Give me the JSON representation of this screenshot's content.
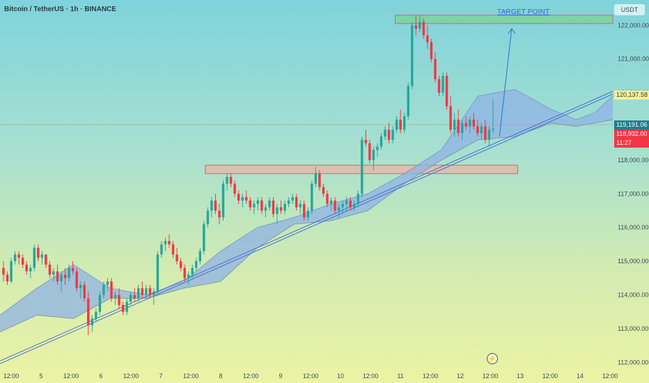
{
  "header": {
    "title": "Bitcoin / TetherUS · 1h · BINANCE",
    "currency": "USDT"
  },
  "annotations": {
    "target_label": "TARGET POINT",
    "price_tags": {
      "upper_cloud": "120,137.58",
      "last_price": "119,191.06",
      "close_price": "118,932.00",
      "countdown": "11:27"
    }
  },
  "colors": {
    "bull": "#26a69a",
    "bear": "#f23645",
    "cloud_bull": "#8fb3e6",
    "cloud_bear": "#f4f0a0",
    "trendline": "#4a6fd0",
    "target_zone": "#7ed39a",
    "support_zone": "#e8b6a6"
  },
  "chart_data": {
    "type": "candlestick",
    "y_axis": {
      "range": [
        111800,
        122750
      ],
      "ticks": [
        "112,000.00",
        "113,000.00",
        "114,000.00",
        "115,000.00",
        "116,000.00",
        "117,000.00",
        "118,000.00",
        "119,000.00",
        "120,000.00",
        "121,000.00",
        "122,000.00"
      ]
    },
    "x_axis": {
      "ticks": [
        "12:00",
        "5",
        "12:00",
        "6",
        "12:00",
        "7",
        "12:00",
        "8",
        "12:00",
        "9",
        "12:00",
        "10",
        "12:00",
        "11",
        "12:00",
        "12",
        "12:00",
        "13",
        "12:00",
        "14",
        "12:00"
      ]
    },
    "candles": [
      [
        114800,
        115000,
        114400,
        114600
      ],
      [
        114600,
        114700,
        114300,
        114400
      ],
      [
        114400,
        115100,
        114350,
        115000
      ],
      [
        115000,
        115300,
        114900,
        115200
      ],
      [
        115200,
        115300,
        114900,
        115100
      ],
      [
        115100,
        115200,
        114800,
        114900
      ],
      [
        114900,
        115000,
        114600,
        114700
      ],
      [
        114700,
        114900,
        114500,
        114800
      ],
      [
        114800,
        115500,
        114700,
        115400
      ],
      [
        115400,
        115500,
        115000,
        115100
      ],
      [
        115100,
        115300,
        114900,
        115200
      ],
      [
        115200,
        115200,
        114800,
        114900
      ],
      [
        114900,
        115000,
        114500,
        114600
      ],
      [
        114600,
        114800,
        114400,
        114700
      ],
      [
        114700,
        114900,
        114300,
        114400
      ],
      [
        114400,
        114700,
        114100,
        114600
      ],
      [
        114600,
        114800,
        114300,
        114500
      ],
      [
        114500,
        114900,
        114400,
        114800
      ],
      [
        114800,
        115000,
        114600,
        114700
      ],
      [
        114700,
        114800,
        114100,
        114200
      ],
      [
        114200,
        114400,
        113900,
        114300
      ],
      [
        114300,
        114400,
        113800,
        113900
      ],
      [
        113900,
        114100,
        112800,
        113100
      ],
      [
        113100,
        113400,
        112900,
        113300
      ],
      [
        113300,
        113600,
        113200,
        113500
      ],
      [
        113500,
        114100,
        113400,
        114000
      ],
      [
        114000,
        114400,
        113900,
        114300
      ],
      [
        114300,
        114500,
        114100,
        114400
      ],
      [
        114400,
        114500,
        113800,
        113900
      ],
      [
        113900,
        114100,
        113700,
        114000
      ],
      [
        114000,
        114200,
        113600,
        113700
      ],
      [
        113700,
        113800,
        113400,
        113500
      ],
      [
        113500,
        113900,
        113400,
        113800
      ],
      [
        113800,
        114100,
        113700,
        114000
      ],
      [
        114000,
        114200,
        113800,
        113900
      ],
      [
        113900,
        114300,
        113800,
        114200
      ],
      [
        114200,
        114400,
        113900,
        114000
      ],
      [
        114000,
        114300,
        113900,
        114200
      ],
      [
        114200,
        114300,
        113900,
        114000
      ],
      [
        114000,
        114200,
        113700,
        114100
      ],
      [
        114100,
        115300,
        114000,
        115200
      ],
      [
        115200,
        115600,
        115100,
        115500
      ],
      [
        115500,
        115700,
        115300,
        115600
      ],
      [
        115600,
        115800,
        115400,
        115500
      ],
      [
        115500,
        115600,
        115100,
        115200
      ],
      [
        115200,
        115400,
        114900,
        115000
      ],
      [
        115000,
        115100,
        114700,
        114800
      ],
      [
        114800,
        114900,
        114400,
        114500
      ],
      [
        114500,
        114700,
        114300,
        114600
      ],
      [
        114600,
        114900,
        114500,
        114800
      ],
      [
        114800,
        115100,
        114700,
        115000
      ],
      [
        115000,
        115400,
        114900,
        115300
      ],
      [
        115300,
        116200,
        115200,
        116100
      ],
      [
        116100,
        116600,
        116000,
        116500
      ],
      [
        116500,
        116900,
        116300,
        116800
      ],
      [
        116800,
        117000,
        116400,
        116500
      ],
      [
        116500,
        116700,
        116100,
        116300
      ],
      [
        116300,
        117400,
        116200,
        117300
      ],
      [
        117300,
        117600,
        117100,
        117500
      ],
      [
        117500,
        117600,
        117200,
        117300
      ],
      [
        117300,
        117400,
        116900,
        117000
      ],
      [
        117000,
        117100,
        116700,
        116800
      ],
      [
        116800,
        117000,
        116600,
        116900
      ],
      [
        116900,
        117100,
        116700,
        116800
      ],
      [
        116800,
        116900,
        116500,
        116600
      ],
      [
        116600,
        116800,
        116400,
        116700
      ],
      [
        116700,
        116900,
        116500,
        116800
      ],
      [
        116800,
        116900,
        116400,
        116500
      ],
      [
        116500,
        116700,
        116300,
        116600
      ],
      [
        116600,
        116900,
        116500,
        116800
      ],
      [
        116800,
        116900,
        116300,
        116400
      ],
      [
        116400,
        116700,
        116100,
        116600
      ],
      [
        116600,
        116800,
        116400,
        116500
      ],
      [
        116500,
        116800,
        116400,
        116700
      ],
      [
        116700,
        116900,
        116600,
        116800
      ],
      [
        116800,
        117000,
        116700,
        116900
      ],
      [
        116900,
        117000,
        116500,
        116600
      ],
      [
        116600,
        116800,
        116400,
        116700
      ],
      [
        116700,
        116800,
        116200,
        116300
      ],
      [
        116300,
        116600,
        116200,
        116500
      ],
      [
        116500,
        117400,
        116400,
        117300
      ],
      [
        117300,
        117800,
        117200,
        117600
      ],
      [
        117600,
        117700,
        117100,
        117200
      ],
      [
        117200,
        117300,
        116900,
        117000
      ],
      [
        117000,
        117100,
        116600,
        116700
      ],
      [
        116700,
        116900,
        116500,
        116800
      ],
      [
        116800,
        116900,
        116400,
        116500
      ],
      [
        116500,
        116700,
        116300,
        116600
      ],
      [
        116600,
        116800,
        116400,
        116700
      ],
      [
        116700,
        116900,
        116500,
        116800
      ],
      [
        116800,
        116900,
        116500,
        116600
      ],
      [
        116600,
        116800,
        116500,
        116700
      ],
      [
        116700,
        117100,
        116600,
        117000
      ],
      [
        117000,
        118700,
        116900,
        118600
      ],
      [
        118600,
        118900,
        118400,
        118500
      ],
      [
        118500,
        118600,
        117900,
        118000
      ],
      [
        118000,
        118400,
        117700,
        118300
      ],
      [
        118300,
        118500,
        118100,
        118400
      ],
      [
        118400,
        118800,
        118300,
        118700
      ],
      [
        118700,
        119000,
        118600,
        118900
      ],
      [
        118900,
        119100,
        118500,
        118600
      ],
      [
        118600,
        119000,
        118500,
        118900
      ],
      [
        118900,
        119300,
        118800,
        119200
      ],
      [
        119200,
        119500,
        118800,
        118900
      ],
      [
        118900,
        119400,
        118800,
        119300
      ],
      [
        119300,
        120300,
        119200,
        120200
      ],
      [
        120200,
        122100,
        120100,
        122000
      ],
      [
        122000,
        122300,
        121700,
        121900
      ],
      [
        121900,
        122300,
        121800,
        122100
      ],
      [
        122100,
        122200,
        121600,
        121700
      ],
      [
        121700,
        122000,
        121300,
        121500
      ],
      [
        121500,
        121600,
        120900,
        121000
      ],
      [
        121000,
        121200,
        120300,
        120400
      ],
      [
        120400,
        120500,
        119900,
        120000
      ],
      [
        120000,
        120600,
        119900,
        120500
      ],
      [
        120500,
        120600,
        119500,
        119600
      ],
      [
        119600,
        119900,
        118800,
        118900
      ],
      [
        118900,
        119400,
        118700,
        119200
      ],
      [
        119200,
        119500,
        118700,
        118800
      ],
      [
        118800,
        119200,
        118600,
        119100
      ],
      [
        119100,
        119300,
        118900,
        119000
      ],
      [
        119000,
        119300,
        118800,
        119200
      ],
      [
        119200,
        119400,
        118900,
        119000
      ],
      [
        119000,
        119200,
        118700,
        118800
      ],
      [
        118800,
        119100,
        118600,
        119000
      ],
      [
        119000,
        119200,
        118500,
        118600
      ],
      [
        118600,
        119000,
        118400,
        118900
      ],
      [
        118900,
        119800,
        118800,
        118932
      ]
    ],
    "ichimoku_cloud": {
      "x_fraction": [
        0.0,
        0.06,
        0.12,
        0.18,
        0.24,
        0.3,
        0.36,
        0.42,
        0.48,
        0.54,
        0.6,
        0.66,
        0.72,
        0.78,
        0.84,
        0.9,
        0.94,
        0.97,
        1.0
      ],
      "span_a": [
        113400,
        114200,
        114900,
        114200,
        114000,
        114400,
        115300,
        116000,
        116300,
        116700,
        117000,
        117600,
        118300,
        119900,
        120100,
        119500,
        119200,
        119400,
        119900
      ],
      "span_b": [
        112900,
        113400,
        113300,
        113900,
        113900,
        114200,
        114400,
        115400,
        116100,
        116200,
        116500,
        117300,
        118000,
        118600,
        118700,
        119100,
        119000,
        119100,
        119200
      ]
    },
    "trendlines": [
      {
        "start": [
          0.0,
          112000
        ],
        "end": [
          1.0,
          120000
        ]
      }
    ],
    "zones": {
      "target": {
        "x_fraction": [
          0.645,
          1.0
        ],
        "price": [
          122050,
          122300
        ]
      },
      "support": {
        "x_fraction": [
          0.335,
          0.845
        ],
        "price": [
          117600,
          117850
        ]
      }
    },
    "projection_arrow": {
      "start_fraction": 0.815,
      "start_price": 118700,
      "end_fraction": 0.835,
      "end_price": 121900
    },
    "horizontal_line_price": 119050
  }
}
